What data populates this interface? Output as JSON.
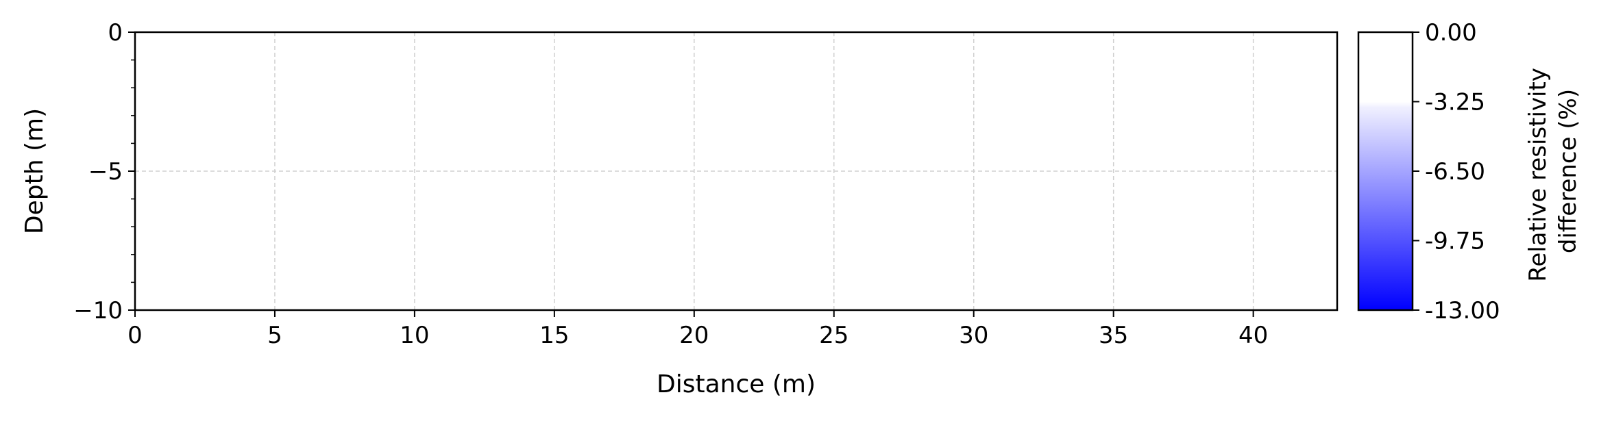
{
  "chart_data": {
    "type": "heatmap",
    "title": "",
    "xlabel": "Distance (m)",
    "ylabel": "Depth (m)",
    "xlim": [
      0,
      43
    ],
    "ylim": [
      -10,
      0
    ],
    "x_ticks": [
      0,
      5,
      10,
      15,
      20,
      25,
      30,
      35,
      40
    ],
    "y_ticks": [
      0,
      -5,
      -10
    ],
    "y_tick_labels": [
      "0",
      "−5",
      "−10"
    ],
    "grid": true,
    "values": [],
    "colorbar": {
      "label_line1": "Relative resistivity",
      "label_line2": "difference (%)",
      "range": [
        -13.0,
        0.0
      ],
      "ticks": [
        0.0,
        -3.25,
        -6.5,
        -9.75,
        -13.0
      ],
      "tick_labels": [
        "0.00",
        "-3.25",
        "-6.50",
        "-9.75",
        "-13.00"
      ],
      "white_above": -3.25,
      "color_min": "#0000ff",
      "color_max": "#ffffff"
    }
  }
}
